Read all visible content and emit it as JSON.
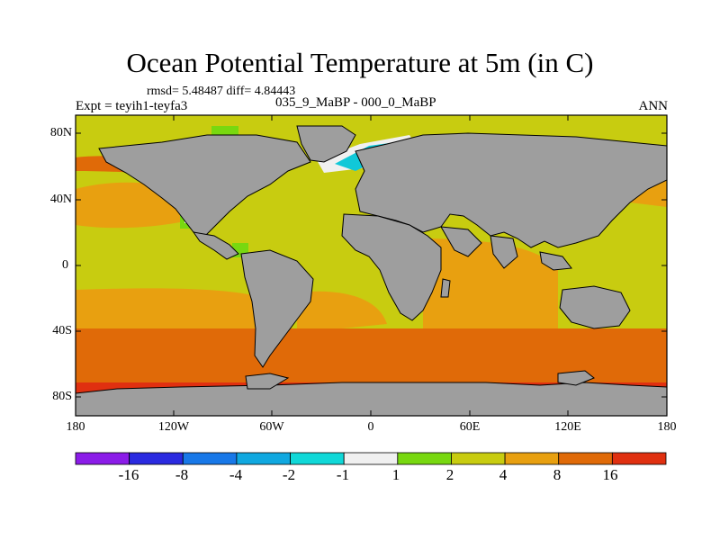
{
  "title": "Ocean Potential Temperature at 5m (in C)",
  "stats": "rmsd= 5.48487 diff= 4.84443",
  "expt": "Expt = teyih1-teyfa3",
  "difference": "035_9_MaBP - 000_0_MaBP",
  "season": "ANN",
  "lat_labels": [
    "80N",
    "40N",
    "0",
    "40S",
    "80S"
  ],
  "lon_labels": [
    "180",
    "120W",
    "60W",
    "0",
    "60E",
    "120E",
    "180"
  ],
  "colorbar": {
    "colors": [
      "#8b1ce8",
      "#2a2ae0",
      "#1878e8",
      "#10a8e0",
      "#10d8d8",
      "#f0f0f0",
      "#78d810",
      "#c8cc10",
      "#e8a010",
      "#e06a08",
      "#e03010"
    ],
    "labels": [
      "-16",
      "-8",
      "-4",
      "-2",
      "-1",
      "1",
      "2",
      "4",
      "8",
      "16"
    ]
  },
  "colors": {
    "land": "#9e9e9e",
    "tropical_ocean": "#c8cc10",
    "warm_ocean": "#e8a010",
    "hot_ocean": "#e06a08",
    "cool_ocean": "#78d810",
    "cold_ocean": "#10c8d8",
    "near_zero": "#f0f0f0"
  }
}
